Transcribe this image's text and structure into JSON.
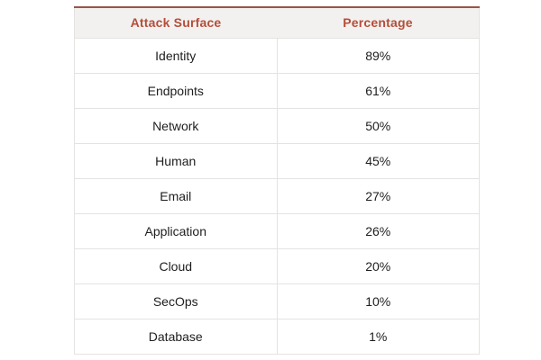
{
  "page": {
    "background_color": "#ffffff"
  },
  "colors": {
    "accent_line": "#96564a",
    "header_background": "#f3f1ef",
    "header_text": "#b44e3a",
    "cell_border": "#e5e3e1",
    "body_text": "#1e1e1e"
  },
  "table": {
    "header": {
      "col_attack_surface": "Attack Surface",
      "col_percentage": "Percentage"
    },
    "rows": [
      {
        "attack_surface": "Identity",
        "percentage": "89%"
      },
      {
        "attack_surface": "Endpoints",
        "percentage": "61%"
      },
      {
        "attack_surface": "Network",
        "percentage": "50%"
      },
      {
        "attack_surface": "Human",
        "percentage": "45%"
      },
      {
        "attack_surface": "Email",
        "percentage": "27%"
      },
      {
        "attack_surface": "Application",
        "percentage": "26%"
      },
      {
        "attack_surface": "Cloud",
        "percentage": "20%"
      },
      {
        "attack_surface": "SecOps",
        "percentage": "10%"
      },
      {
        "attack_surface": "Database",
        "percentage": "1%"
      }
    ]
  },
  "chart_data": {
    "type": "table",
    "title": "",
    "columns": [
      "Attack Surface",
      "Percentage"
    ],
    "categories": [
      "Identity",
      "Endpoints",
      "Network",
      "Human",
      "Email",
      "Application",
      "Cloud",
      "SecOps",
      "Database"
    ],
    "values": [
      89,
      61,
      50,
      45,
      27,
      26,
      20,
      10,
      1
    ],
    "value_unit": "%"
  }
}
